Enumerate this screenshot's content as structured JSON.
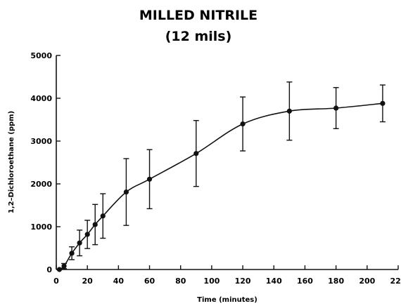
{
  "chart_data": {
    "type": "line",
    "title": "MILLED NITRILE",
    "subtitle": "(12 mils)",
    "xlabel": "Time (minutes)",
    "ylabel": "1,2–Dichloroethane (ppm)",
    "xlim": [
      0,
      220
    ],
    "ylim": [
      0,
      5000
    ],
    "x_ticks": [
      0,
      20,
      40,
      60,
      80,
      100,
      120,
      140,
      160,
      180,
      200,
      220
    ],
    "y_ticks": [
      0,
      1000,
      2000,
      3000,
      4000,
      5000
    ],
    "grid": false,
    "points": [
      {
        "x": 2,
        "y": 0,
        "yerr": 0
      },
      {
        "x": 5,
        "y": 80,
        "yerr": 60
      },
      {
        "x": 10,
        "y": 380,
        "yerr": 150
      },
      {
        "x": 15,
        "y": 620,
        "yerr": 300
      },
      {
        "x": 20,
        "y": 820,
        "yerr": 330
      },
      {
        "x": 25,
        "y": 1050,
        "yerr": 470
      },
      {
        "x": 30,
        "y": 1250,
        "yerr": 520
      },
      {
        "x": 45,
        "y": 1810,
        "yerr": 780
      },
      {
        "x": 60,
        "y": 2110,
        "yerr": 690
      },
      {
        "x": 90,
        "y": 2710,
        "yerr": 770
      },
      {
        "x": 120,
        "y": 3400,
        "yerr": 630
      },
      {
        "x": 150,
        "y": 3700,
        "yerr": 680
      },
      {
        "x": 180,
        "y": 3770,
        "yerr": 480
      },
      {
        "x": 210,
        "y": 3880,
        "yerr": 430
      }
    ]
  }
}
